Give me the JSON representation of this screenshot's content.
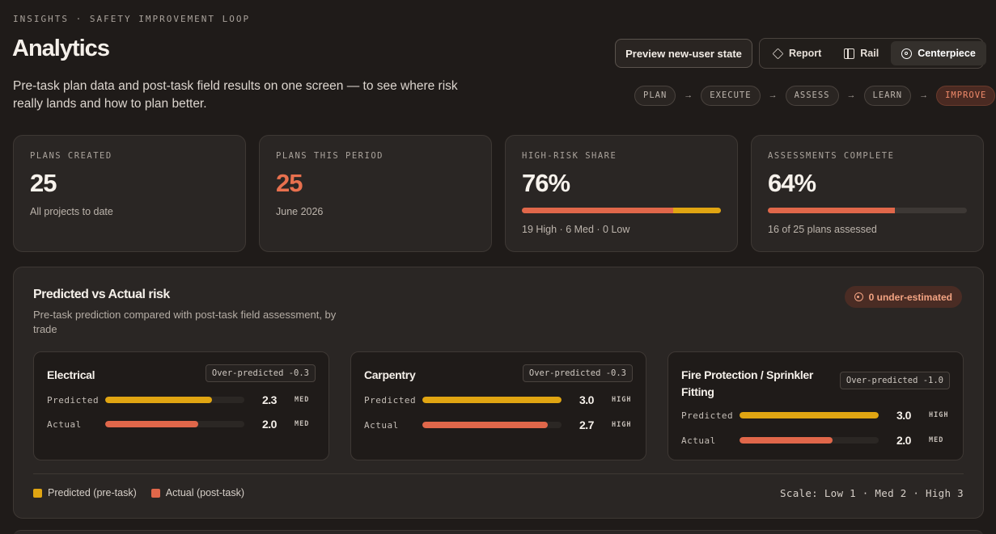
{
  "header": {
    "eyebrow": "INSIGHTS · SAFETY IMPROVEMENT LOOP",
    "title": "Analytics",
    "subtitle": "Pre-task plan data and post-task field results on one screen — to see where risk really lands and how to plan better.",
    "preview_button": "Preview new-user state",
    "view_modes": [
      {
        "label": "Report",
        "icon": "layers-icon",
        "active": false
      },
      {
        "label": "Rail",
        "icon": "rail-icon",
        "active": false
      },
      {
        "label": "Centerpiece",
        "icon": "target-icon",
        "active": true
      }
    ],
    "loop_steps": [
      {
        "label": "PLAN",
        "current": false
      },
      {
        "label": "EXECUTE",
        "current": false
      },
      {
        "label": "ASSESS",
        "current": false
      },
      {
        "label": "LEARN",
        "current": false
      },
      {
        "label": "IMPROVE",
        "current": true
      }
    ],
    "loop_arrow": "→"
  },
  "kpis": [
    {
      "label": "PLANS CREATED",
      "value": "25",
      "sub": "All projects to date",
      "accent": false
    },
    {
      "label": "PLANS THIS PERIOD",
      "value": "25",
      "sub": "June 2026",
      "accent": true
    },
    {
      "label": "HIGH-RISK SHARE",
      "value": "76%",
      "sub": "19 High · 6 Med · 0 Low",
      "bar": [
        {
          "fraction": 0.76,
          "color": "#e0674a"
        },
        {
          "fraction": 0.24,
          "color": "#e0a512"
        }
      ]
    },
    {
      "label": "ASSESSMENTS COMPLETE",
      "value": "64%",
      "sub": "16 of 25 plans assessed",
      "bar": [
        {
          "fraction": 0.64,
          "color": "#e0674a"
        }
      ]
    }
  ],
  "panel": {
    "title": "Predicted vs Actual risk",
    "subtitle": "Pre-task prediction compared with post-task field assessment, by trade",
    "badge": "0 under-estimated",
    "predicted_label": "Predicted",
    "actual_label": "Actual",
    "trades": [
      {
        "name": "Electrical",
        "tag": "Over-predicted -0.3",
        "predicted": {
          "value": "2.3",
          "level": "MED",
          "score": 2.3
        },
        "actual": {
          "value": "2.0",
          "level": "MED",
          "score": 2.0
        }
      },
      {
        "name": "Carpentry",
        "tag": "Over-predicted -0.3",
        "predicted": {
          "value": "3.0",
          "level": "HIGH",
          "score": 3.0
        },
        "actual": {
          "value": "2.7",
          "level": "HIGH",
          "score": 2.7
        }
      },
      {
        "name": "Fire Protection / Sprinkler Fitting",
        "tag": "Over-predicted -1.0",
        "predicted": {
          "value": "3.0",
          "level": "HIGH",
          "score": 3.0
        },
        "actual": {
          "value": "2.0",
          "level": "MED",
          "score": 2.0
        }
      }
    ],
    "scale_max": 3,
    "legend": [
      {
        "label": "Predicted (pre-task)",
        "color": "#e0a512"
      },
      {
        "label": "Actual (post-task)",
        "color": "#e0674a"
      }
    ],
    "scale_text": "Scale: Low 1 · Med 2 · High 3"
  },
  "colors": {
    "predicted": "#e0a512",
    "actual": "#e0674a",
    "accent": "#e8704e"
  }
}
